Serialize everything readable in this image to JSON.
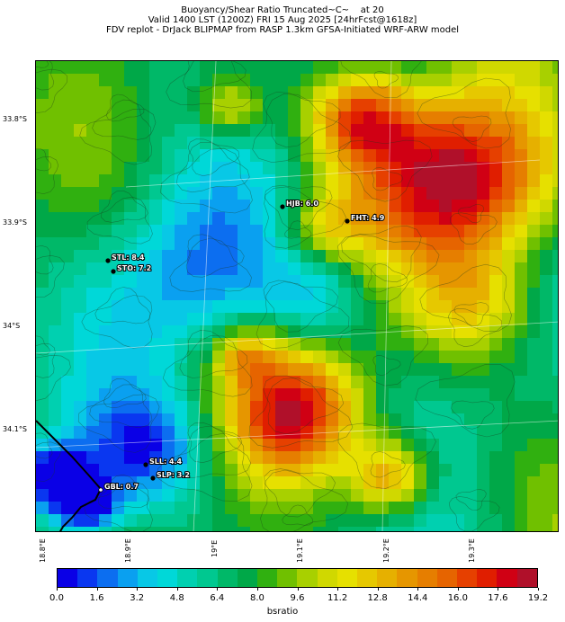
{
  "title": {
    "line1": "Buoyancy/Shear Ratio Truncated~C~    at 20",
    "line2": "Valid 1400 LST (1200Z) FRI 15 Aug 2025 [24hrFcst@1618z]",
    "line3": "FDV replot - DrJack BLIPMAP from RASP 1.3km GFSA-Initiated WRF-ARW model"
  },
  "map": {
    "lat_labels": [
      "33.8°S",
      "33.9°S",
      "34°S",
      "34.1°S"
    ],
    "lon_labels": [
      "18.8°E",
      "18.9°E",
      "19°E",
      "19.1°E",
      "19.2°E",
      "19.3°E"
    ],
    "stations": [
      {
        "name": "HJB: 6.0"
      },
      {
        "name": "FHT: 4.9"
      },
      {
        "name": "STL: 8.4"
      },
      {
        "name": "STO: 7.2"
      },
      {
        "name": "SLL: 4.4"
      },
      {
        "name": "SLP: 3.2"
      },
      {
        "name": "GBL: 0.7"
      }
    ]
  },
  "colorbar": {
    "colors": [
      "#0a00e6",
      "#0a37f0",
      "#0c6ef0",
      "#0aa0f0",
      "#08c8e6",
      "#00d8d8",
      "#00d0b0",
      "#00c890",
      "#00b868",
      "#00a848",
      "#30b010",
      "#70c000",
      "#a8d000",
      "#d0d800",
      "#e6e000",
      "#e6c800",
      "#e6b000",
      "#e69600",
      "#e67e00",
      "#e66400",
      "#e64000",
      "#e01e00",
      "#d00014",
      "#b0102a"
    ],
    "tick_labels": [
      "0.0",
      "1.6",
      "3.2",
      "4.8",
      "6.4",
      "8.0",
      "9.6",
      "11.2",
      "12.8",
      "14.4",
      "16.0",
      "17.6",
      "19.2"
    ],
    "label": "bsratio"
  }
}
